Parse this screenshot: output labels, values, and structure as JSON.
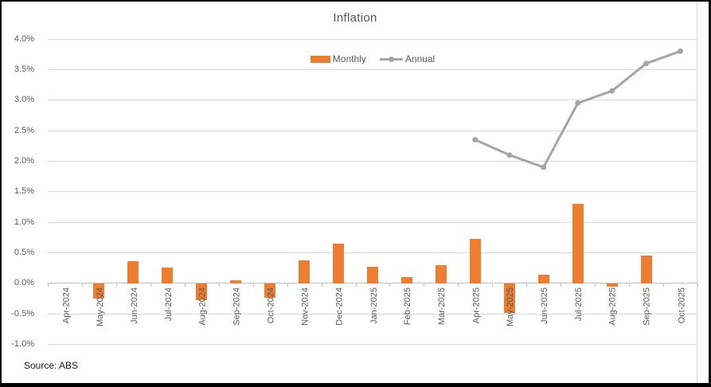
{
  "window": {
    "background": "#ffffff",
    "frame_border_color": "#000000"
  },
  "chart_data": {
    "type": "combo",
    "title": "Inflation",
    "categories": [
      "Apr-2024",
      "May-2024",
      "Jun-2024",
      "Jul-2024",
      "Aug-2024",
      "Sep-2024",
      "Oct-2024",
      "Nov-2024",
      "Dec-2024",
      "Jan-2025",
      "Feb-2025",
      "Mar-2025",
      "Apr-2025",
      "May-2025",
      "Jun-2025",
      "Jul-2025",
      "Aug-2025",
      "Sep-2025",
      "Oct-2025"
    ],
    "series": [
      {
        "name": "Monthly",
        "type": "bar",
        "color": "#ED7D31",
        "values": [
          0,
          -0.25,
          0.36,
          0.26,
          -0.28,
          0.05,
          -0.24,
          0.37,
          0.65,
          0.27,
          0.1,
          0.3,
          0.73,
          -0.49,
          0.14,
          1.3,
          -0.06,
          0.45,
          0
        ]
      },
      {
        "name": "Annual",
        "type": "line",
        "color": "#A5A5A5",
        "values": [
          null,
          null,
          null,
          null,
          null,
          null,
          null,
          null,
          null,
          null,
          null,
          null,
          2.35,
          2.1,
          1.9,
          2.95,
          3.15,
          3.6,
          3.8
        ]
      }
    ],
    "ylim": [
      -1.0,
      4.0
    ],
    "ytick_step": 0.5,
    "ytick_values": [
      4.0,
      3.5,
      3.0,
      2.5,
      2.0,
      1.5,
      1.0,
      0.5,
      0.0,
      -0.5,
      -1.0
    ],
    "ytick_labels": [
      "4.0%",
      "3.5%",
      "3.0%",
      "2.5%",
      "2.0%",
      "1.5%",
      "1.0%",
      "0.5%",
      "0.0%",
      "-0.5%",
      "-1.0%"
    ],
    "grid": true,
    "legend_position": "top-center",
    "xlabel": "",
    "ylabel": ""
  },
  "colors": {
    "gridline": "#D9D9D9",
    "axis": "#BFBFBF",
    "tick": "#BFBFBF",
    "axis_text": "#595959",
    "title_text": "#595959",
    "sheet_gridline": "#D9D9D9"
  },
  "source_note": "Source: ABS"
}
